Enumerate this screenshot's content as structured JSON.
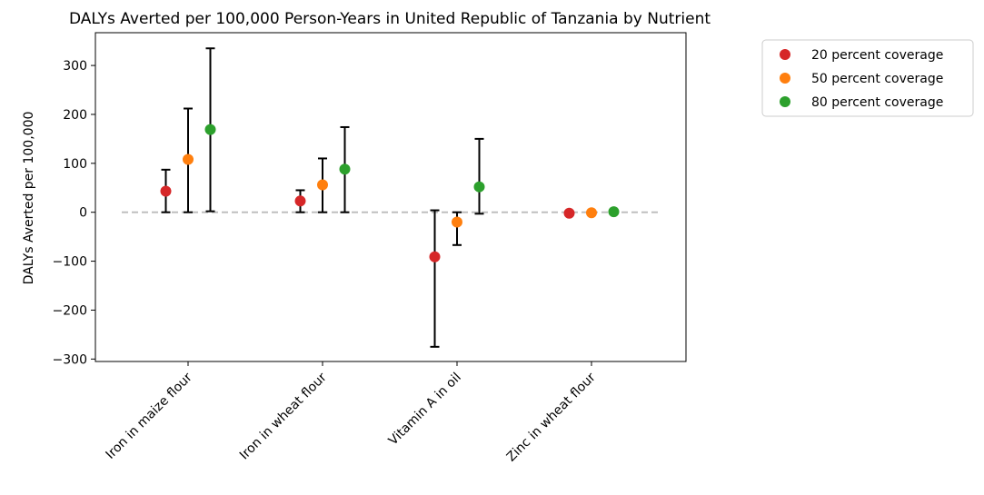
{
  "chart_data": {
    "type": "scatter",
    "title": "DALYs Averted per 100,000 Person-Years in United Republic of Tanzania by Nutrient",
    "ylabel": "DALYs Averted per 100,000",
    "xlabel": "",
    "categories": [
      "Iron in maize flour",
      "Iron in wheat flour",
      "Vitamin A in oil",
      "Zinc in wheat flour"
    ],
    "ylim": [
      -305,
      367
    ],
    "yticks": [
      -300,
      -200,
      -100,
      0,
      100,
      200,
      300
    ],
    "ytick_labels": [
      "−300",
      "−200",
      "−100",
      "0",
      "100",
      "200",
      "300"
    ],
    "reference_line": {
      "y": 0,
      "style": "dashed",
      "color": "#bbbbbb"
    },
    "legend_position": "outside-top-right",
    "series": [
      {
        "name": "20 percent coverage",
        "color": "#d62728",
        "values": [
          43,
          23,
          -91,
          -2
        ],
        "lower": [
          0,
          0,
          -275,
          -5
        ],
        "upper": [
          87,
          45,
          4,
          1
        ]
      },
      {
        "name": "50 percent coverage",
        "color": "#ff7f0e",
        "values": [
          108,
          56,
          -20,
          -1
        ],
        "lower": [
          0,
          0,
          -67,
          -3
        ],
        "upper": [
          212,
          110,
          0,
          1
        ]
      },
      {
        "name": "80 percent coverage",
        "color": "#2ca02c",
        "values": [
          169,
          88,
          52,
          1
        ],
        "lower": [
          2,
          0,
          -3,
          -1
        ],
        "upper": [
          335,
          174,
          150,
          4
        ]
      }
    ]
  }
}
